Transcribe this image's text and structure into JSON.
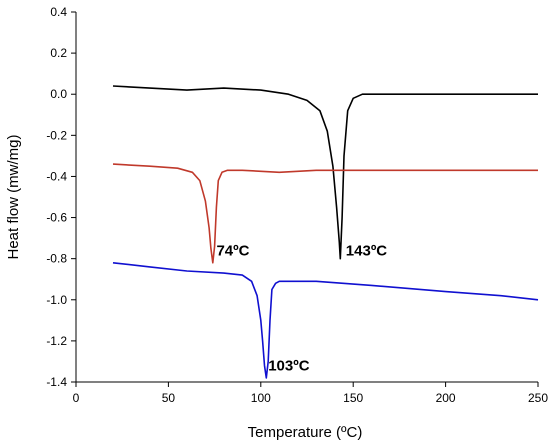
{
  "chart_data": {
    "type": "line",
    "title": "",
    "xlabel": "Temperature (ºC)",
    "ylabel": "Heat flow (mw/mg)",
    "xlim": [
      0,
      250
    ],
    "ylim": [
      -1.4,
      0.4
    ],
    "xticks": [
      "0",
      "50",
      "100",
      "150",
      "200",
      "250"
    ],
    "yticks": [
      "0.4",
      "0.2",
      "0.0",
      "-0.2",
      "-0.4",
      "-0.6",
      "-0.8",
      "-1.0",
      "-1.2",
      "-1.4"
    ],
    "grid": false,
    "legend": "none",
    "series": [
      {
        "color": "#000000",
        "x": [
          20,
          40,
          60,
          80,
          100,
          115,
          125,
          132,
          136,
          139,
          141,
          142.5,
          143,
          144,
          145,
          147,
          150,
          155,
          170,
          200,
          230,
          250
        ],
        "y": [
          0.04,
          0.03,
          0.02,
          0.03,
          0.02,
          0.0,
          -0.03,
          -0.08,
          -0.18,
          -0.35,
          -0.55,
          -0.72,
          -0.8,
          -0.6,
          -0.3,
          -0.08,
          -0.02,
          0.0,
          0.0,
          0.0,
          0.0,
          0.0
        ]
      },
      {
        "color": "#c0392b",
        "x": [
          20,
          40,
          55,
          63,
          67,
          70,
          72,
          73,
          74,
          75,
          76,
          77,
          79,
          82,
          90,
          110,
          130,
          150,
          170,
          200,
          230,
          250
        ],
        "y": [
          -0.34,
          -0.35,
          -0.36,
          -0.38,
          -0.42,
          -0.52,
          -0.65,
          -0.75,
          -0.82,
          -0.74,
          -0.55,
          -0.42,
          -0.38,
          -0.37,
          -0.37,
          -0.38,
          -0.37,
          -0.37,
          -0.37,
          -0.37,
          -0.37,
          -0.37
        ]
      },
      {
        "color": "#1010d0",
        "x": [
          20,
          40,
          60,
          80,
          90,
          95,
          98,
          100,
          101,
          102,
          103,
          104,
          105,
          106,
          108,
          110,
          130,
          160,
          200,
          230,
          250
        ],
        "y": [
          -0.82,
          -0.84,
          -0.86,
          -0.87,
          -0.88,
          -0.91,
          -0.98,
          -1.1,
          -1.2,
          -1.32,
          -1.38,
          -1.3,
          -1.1,
          -0.95,
          -0.92,
          -0.91,
          -0.91,
          -0.93,
          -0.96,
          -0.98,
          -1.0
        ]
      }
    ],
    "annotations": [
      {
        "text": "74ºC",
        "x": 76,
        "y": -0.76
      },
      {
        "text": "143ºC",
        "x": 146,
        "y": -0.76
      },
      {
        "text": "103ºC",
        "x": 104,
        "y": -1.32
      }
    ]
  }
}
